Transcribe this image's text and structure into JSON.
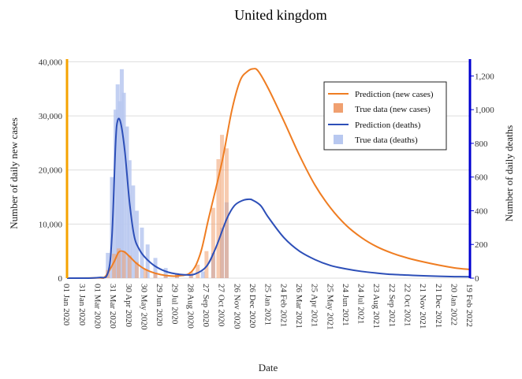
{
  "chart_data": {
    "type": "line",
    "title": "United kingdom",
    "xlabel": "Date",
    "ylabel_left": "Number of daily new cases",
    "ylabel_right": "Number of daily deaths",
    "ylim_left": [
      0,
      40500
    ],
    "ylim_right": [
      0,
      1300
    ],
    "yticks_left": [
      "0",
      "10,000",
      "20,000",
      "30,000",
      "40,000"
    ],
    "yticks_left_values": [
      0,
      10000,
      20000,
      30000,
      40000
    ],
    "yticks_right": [
      "0",
      "200",
      "400",
      "600",
      "800",
      "1,000",
      "1,200"
    ],
    "yticks_right_values": [
      0,
      200,
      400,
      600,
      800,
      1000,
      1200
    ],
    "x_tick_labels": [
      "01 Jan 2020",
      "31 Jan 2020",
      "01 Mar 2020",
      "31 Mar 2020",
      "30 Apr 2020",
      "30 May 2020",
      "29 Jun 2020",
      "29 Jul 2020",
      "28 Aug 2020",
      "27 Sep 2020",
      "27 Oct 2020",
      "26 Nov 2020",
      "26 Dec 2020",
      "25 Jan 2021",
      "24 Feb 2021",
      "26 Mar 2021",
      "25 Apr 2021",
      "25 May 2021",
      "24 Jun 2021",
      "24 Jul 2021",
      "23 Aug 2021",
      "22 Sep 2021",
      "22 Oct 2021",
      "21 Nov 2021",
      "21 Dec 2021",
      "20 Jan 2022",
      "19 Feb 2022"
    ],
    "legend_position": "top-right",
    "grid": true,
    "colors": {
      "pred_cases": "#ef7d22",
      "true_cases": "#f0a070",
      "pred_deaths": "#2d4fb8",
      "true_deaths": "#b8c8f0",
      "left_axis": "#f5a300",
      "right_axis": "#0000d0"
    },
    "series": [
      {
        "name": "Prediction (new cases)",
        "axis": "left",
        "x": [
          "2020-01-01",
          "2020-03-01",
          "2020-03-15",
          "2020-04-01",
          "2020-04-10",
          "2020-04-20",
          "2020-05-01",
          "2020-05-15",
          "2020-06-01",
          "2020-06-20",
          "2020-07-10",
          "2020-08-01",
          "2020-08-28",
          "2020-09-15",
          "2020-10-01",
          "2020-10-27",
          "2020-11-15",
          "2020-12-01",
          "2020-12-15",
          "2020-12-26",
          "2021-01-05",
          "2021-01-25",
          "2021-02-24",
          "2021-03-26",
          "2021-04-25",
          "2021-05-25",
          "2021-06-24",
          "2021-07-24",
          "2021-08-23",
          "2021-09-22",
          "2021-10-22",
          "2021-11-21",
          "2021-12-21",
          "2022-01-20",
          "2022-02-19"
        ],
        "values": [
          0,
          50,
          300,
          3000,
          4800,
          4900,
          4000,
          2700,
          1600,
          900,
          500,
          400,
          1100,
          4500,
          11000,
          21500,
          31000,
          36500,
          38200,
          38700,
          38300,
          35000,
          29000,
          22700,
          17200,
          13000,
          9800,
          7500,
          5800,
          4600,
          3700,
          3000,
          2400,
          1900,
          1600
        ]
      },
      {
        "name": "True data (new cases)",
        "axis": "left",
        "type": "bar",
        "x": [
          "2020-03-10",
          "2020-03-20",
          "2020-04-01",
          "2020-04-10",
          "2020-04-20",
          "2020-05-01",
          "2020-05-15",
          "2020-06-01",
          "2020-06-20",
          "2020-07-10",
          "2020-08-01",
          "2020-08-28",
          "2020-09-10",
          "2020-09-27",
          "2020-10-10",
          "2020-10-20",
          "2020-10-27",
          "2020-11-05"
        ],
        "values": [
          300,
          1500,
          4500,
          5500,
          5000,
          4200,
          3000,
          1700,
          1000,
          600,
          800,
          1200,
          2500,
          5000,
          13000,
          22000,
          26500,
          24000
        ]
      },
      {
        "name": "Prediction (deaths)",
        "axis": "right",
        "x": [
          "2020-01-01",
          "2020-03-01",
          "2020-03-20",
          "2020-03-28",
          "2020-04-04",
          "2020-04-08",
          "2020-04-14",
          "2020-04-22",
          "2020-05-01",
          "2020-05-10",
          "2020-05-20",
          "2020-06-01",
          "2020-06-20",
          "2020-07-15",
          "2020-08-15",
          "2020-09-05",
          "2020-09-27",
          "2020-10-15",
          "2020-11-05",
          "2020-11-20",
          "2020-12-05",
          "2020-12-18",
          "2020-12-26",
          "2021-01-10",
          "2021-01-25",
          "2021-02-24",
          "2021-03-26",
          "2021-04-25",
          "2021-05-25",
          "2021-06-24",
          "2021-07-24",
          "2021-08-23",
          "2021-09-22",
          "2021-10-22",
          "2021-11-21",
          "2021-12-21",
          "2022-01-20",
          "2022-02-19"
        ],
        "values": [
          0,
          3,
          30,
          250,
          800,
          935,
          920,
          750,
          450,
          250,
          170,
          120,
          70,
          35,
          20,
          25,
          70,
          180,
          350,
          430,
          460,
          468,
          462,
          430,
          360,
          240,
          160,
          110,
          75,
          55,
          40,
          30,
          22,
          18,
          14,
          11,
          9,
          8
        ]
      },
      {
        "name": "True data (deaths)",
        "axis": "right",
        "type": "bar",
        "x": [
          "2020-03-20",
          "2020-03-28",
          "2020-04-04",
          "2020-04-08",
          "2020-04-12",
          "2020-04-16",
          "2020-04-20",
          "2020-04-26",
          "2020-05-01",
          "2020-05-08",
          "2020-05-15",
          "2020-05-25",
          "2020-06-05",
          "2020-06-20",
          "2020-07-10",
          "2020-08-01",
          "2020-08-28",
          "2020-09-20",
          "2020-10-10",
          "2020-10-27",
          "2020-11-05"
        ],
        "values": [
          150,
          600,
          1000,
          1150,
          1050,
          1240,
          1100,
          900,
          700,
          550,
          400,
          300,
          200,
          120,
          60,
          30,
          20,
          40,
          150,
          300,
          450
        ]
      }
    ]
  }
}
